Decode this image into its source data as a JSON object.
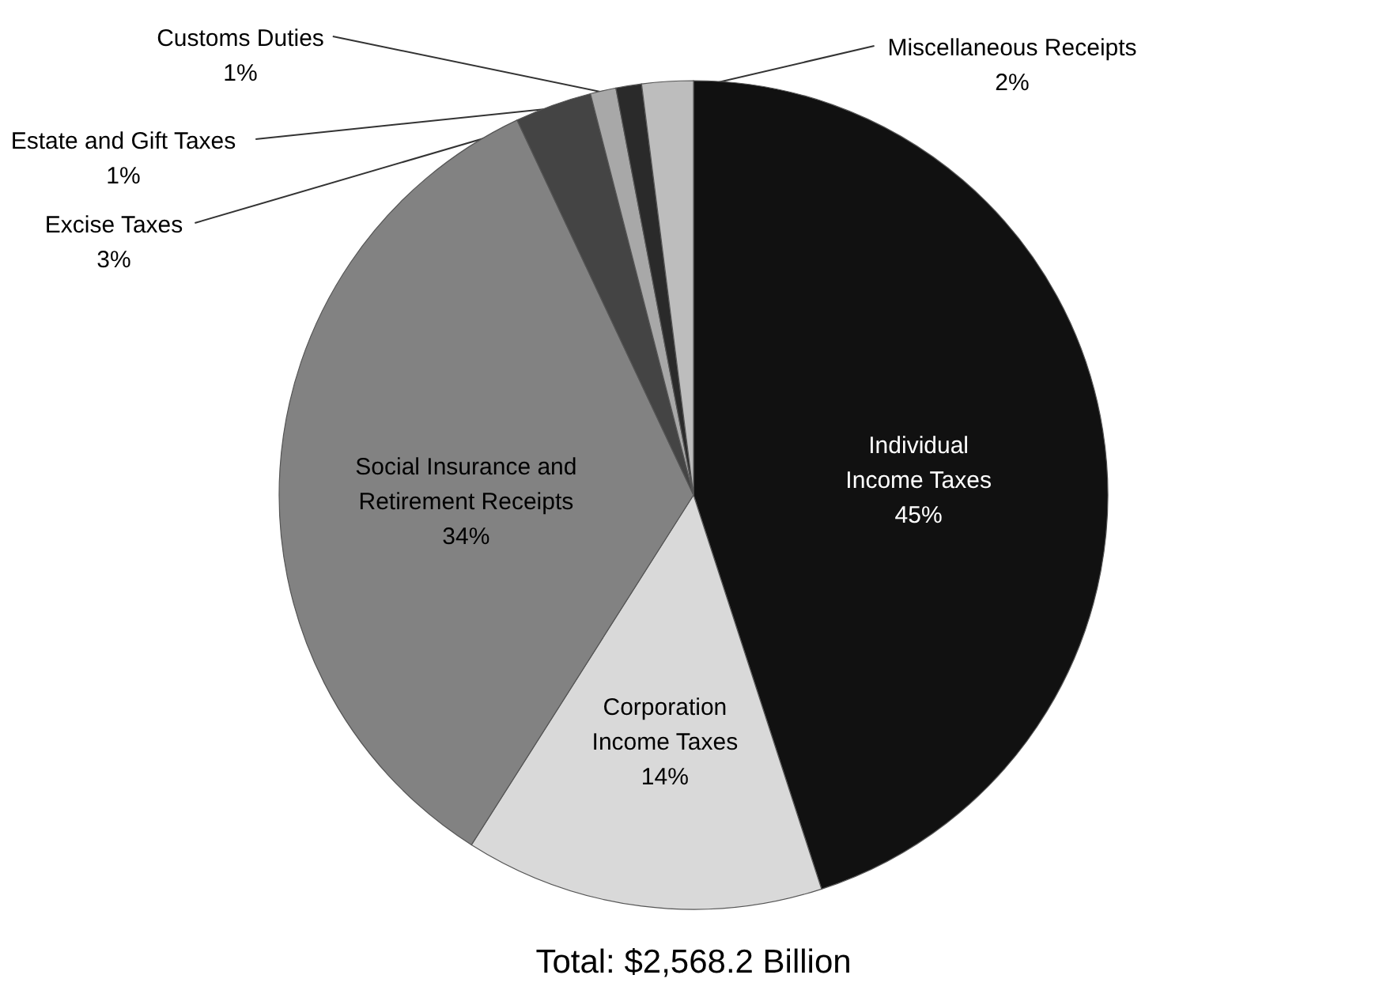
{
  "chart_data": {
    "type": "pie",
    "categories": [
      "Individual Income Taxes",
      "Corporation Income Taxes",
      "Social Insurance and Retirement Receipts",
      "Excise Taxes",
      "Estate and Gift Taxes",
      "Customs Duties",
      "Miscellaneous Receipts"
    ],
    "values": [
      45,
      14,
      34,
      3,
      1,
      1,
      2
    ],
    "value_labels": [
      "45%",
      "14%",
      "34%",
      "3%",
      "1%",
      "1%",
      "2%"
    ],
    "colors": [
      "#111111",
      "#d9d9d9",
      "#828282",
      "#444444",
      "#a8a8a8",
      "#2a2a2a",
      "#bdbdbd"
    ],
    "annotations": [
      "Total: $2,568.2 Billion"
    ]
  }
}
